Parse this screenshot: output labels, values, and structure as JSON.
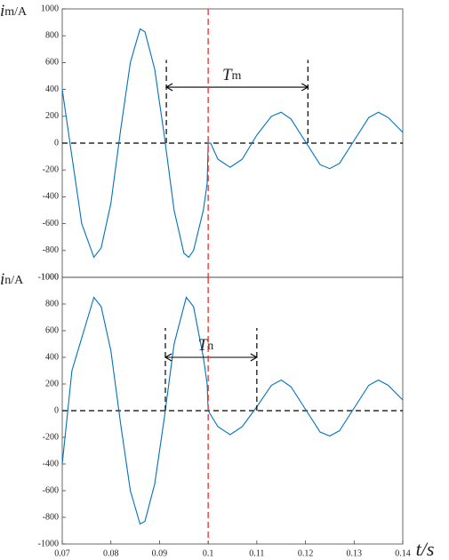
{
  "chart_data": [
    {
      "type": "line",
      "ylabel_symbol": "i",
      "ylabel_unit": "m/A",
      "xlim": [
        0.07,
        0.14
      ],
      "ylim": [
        -1000,
        1000
      ],
      "yticks": [
        -1000,
        -800,
        -600,
        -400,
        -200,
        0,
        200,
        400,
        600,
        800,
        1000
      ],
      "x": [
        0.07,
        0.072,
        0.074,
        0.0765,
        0.078,
        0.08,
        0.082,
        0.084,
        0.086,
        0.087,
        0.089,
        0.091,
        0.093,
        0.095,
        0.096,
        0.097,
        0.099,
        0.0998,
        0.1,
        0.1005,
        0.102,
        0.1045,
        0.107,
        0.11,
        0.113,
        0.115,
        0.117,
        0.12,
        0.123,
        0.125,
        0.127,
        0.13,
        0.133,
        0.135,
        0.137,
        0.14
      ],
      "series": [
        {
          "color": "#0072bd",
          "values": [
            400,
            -100,
            -600,
            -850,
            -780,
            -450,
            100,
            600,
            850,
            830,
            550,
            50,
            -500,
            -820,
            -850,
            -800,
            -500,
            -300,
            0,
            0,
            -120,
            -180,
            -120,
            60,
            200,
            230,
            180,
            10,
            -160,
            -190,
            -150,
            20,
            190,
            230,
            190,
            80
          ]
        }
      ],
      "zero_line": 0,
      "vline": {
        "x": 0.1,
        "color": "#e8302a"
      },
      "annotation": {
        "symbol": "T",
        "sub": "m",
        "x1": 0.0914,
        "x2": 0.1205,
        "y": 417,
        "top": 620
      }
    },
    {
      "type": "line",
      "ylabel_symbol": "i",
      "ylabel_unit": "n/A",
      "xlabel": "t/s",
      "xlim": [
        0.07,
        0.14
      ],
      "ylim": [
        -1000,
        1000
      ],
      "xticks": [
        0.07,
        0.08,
        0.09,
        0.1,
        0.11,
        0.12,
        0.13,
        0.14
      ],
      "yticks": [
        -1000,
        -800,
        -600,
        -400,
        -200,
        0,
        200,
        400,
        600,
        800,
        1000
      ],
      "x": [
        0.07,
        0.072,
        0.0765,
        0.078,
        0.08,
        0.082,
        0.084,
        0.086,
        0.087,
        0.089,
        0.091,
        0.093,
        0.0955,
        0.097,
        0.099,
        0.0998,
        0.1,
        0.102,
        0.1045,
        0.107,
        0.11,
        0.113,
        0.115,
        0.117,
        0.12,
        0.123,
        0.125,
        0.127,
        0.13,
        0.133,
        0.135,
        0.137,
        0.14
      ],
      "series": [
        {
          "color": "#0072bd",
          "values": [
            -400,
            300,
            850,
            780,
            450,
            -100,
            -600,
            -850,
            -830,
            -550,
            -50,
            500,
            850,
            780,
            400,
            200,
            0,
            -120,
            -180,
            -120,
            30,
            190,
            230,
            180,
            10,
            -160,
            -190,
            -150,
            20,
            190,
            230,
            190,
            80
          ]
        }
      ],
      "zero_line": 0,
      "vline": {
        "x": 0.1,
        "color": "#e8302a"
      },
      "annotation": {
        "symbol": "T",
        "sub": "n",
        "x1": 0.0912,
        "x2": 0.11,
        "y": 400,
        "top": 620
      }
    }
  ]
}
